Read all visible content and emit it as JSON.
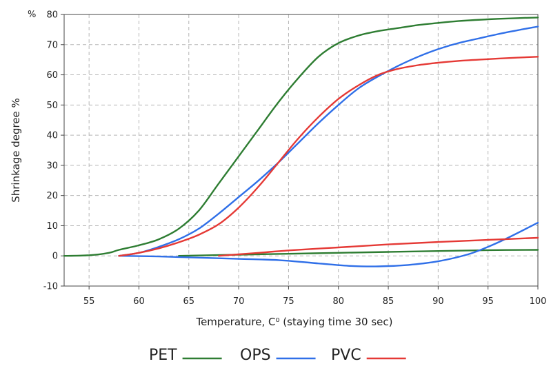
{
  "chart_data": {
    "type": "line",
    "xlabel": "Temperature, C⁰  (staying time 30 sec)",
    "ylabel": "Shrinkage degree %",
    "y_unit_label": "%",
    "xlim": [
      52.5,
      100
    ],
    "ylim": [
      -10,
      80
    ],
    "x_ticks": [
      55,
      60,
      65,
      70,
      75,
      80,
      85,
      90,
      95,
      100
    ],
    "y_ticks": [
      -10,
      0,
      10,
      20,
      30,
      40,
      50,
      60,
      70,
      80
    ],
    "grid": true,
    "legend_position": "bottom-center",
    "series": [
      {
        "name": "PET",
        "direction": "shrinkage",
        "color": "#2e7d32",
        "points": [
          [
            52.5,
            0
          ],
          [
            55,
            0.2
          ],
          [
            57,
            1
          ],
          [
            58,
            2
          ],
          [
            60,
            3.5
          ],
          [
            62,
            5.5
          ],
          [
            64,
            9
          ],
          [
            66,
            15
          ],
          [
            68,
            24
          ],
          [
            70,
            33
          ],
          [
            72,
            42
          ],
          [
            74,
            51
          ],
          [
            76,
            59
          ],
          [
            78,
            66
          ],
          [
            80,
            70.5
          ],
          [
            82,
            73
          ],
          [
            84,
            74.5
          ],
          [
            86,
            75.5
          ],
          [
            88,
            76.5
          ],
          [
            90,
            77.2
          ],
          [
            92,
            77.8
          ],
          [
            95,
            78.4
          ],
          [
            98,
            78.8
          ],
          [
            100,
            79
          ]
        ]
      },
      {
        "name": "PET",
        "direction": "transverse",
        "color": "#2e7d32",
        "points": [
          [
            64,
            0
          ],
          [
            70,
            0.4
          ],
          [
            75,
            0.7
          ],
          [
            80,
            1
          ],
          [
            85,
            1.3
          ],
          [
            90,
            1.6
          ],
          [
            95,
            1.9
          ],
          [
            100,
            2
          ]
        ]
      },
      {
        "name": "OPS",
        "direction": "shrinkage",
        "color": "#2f6fe8",
        "points": [
          [
            58,
            0
          ],
          [
            60,
            1
          ],
          [
            62,
            3
          ],
          [
            64,
            5.5
          ],
          [
            66,
            9
          ],
          [
            68,
            14
          ],
          [
            70,
            19.5
          ],
          [
            72,
            25
          ],
          [
            74,
            31
          ],
          [
            76,
            37.5
          ],
          [
            78,
            44
          ],
          [
            80,
            50
          ],
          [
            82,
            55.5
          ],
          [
            84,
            59.5
          ],
          [
            86,
            63
          ],
          [
            88,
            66
          ],
          [
            90,
            68.5
          ],
          [
            92,
            70.5
          ],
          [
            94,
            72
          ],
          [
            96,
            73.5
          ],
          [
            98,
            74.8
          ],
          [
            100,
            76
          ]
        ]
      },
      {
        "name": "OPS",
        "direction": "transverse",
        "color": "#2f6fe8",
        "points": [
          [
            58,
            0
          ],
          [
            62,
            -0.2
          ],
          [
            66,
            -0.6
          ],
          [
            70,
            -1
          ],
          [
            74,
            -1.4
          ],
          [
            78,
            -2.5
          ],
          [
            81,
            -3.3
          ],
          [
            84,
            -3.5
          ],
          [
            87,
            -3
          ],
          [
            90,
            -1.8
          ],
          [
            93,
            0.5
          ],
          [
            95,
            3
          ],
          [
            97,
            6
          ],
          [
            100,
            11
          ]
        ]
      },
      {
        "name": "PVC",
        "direction": "shrinkage",
        "color": "#e53935",
        "points": [
          [
            58,
            0
          ],
          [
            60,
            1
          ],
          [
            62,
            2.5
          ],
          [
            64,
            4.5
          ],
          [
            66,
            7
          ],
          [
            68,
            10.5
          ],
          [
            70,
            16
          ],
          [
            72,
            23
          ],
          [
            74,
            31
          ],
          [
            76,
            39
          ],
          [
            78,
            46
          ],
          [
            80,
            52
          ],
          [
            82,
            56.5
          ],
          [
            84,
            60
          ],
          [
            86,
            62
          ],
          [
            88,
            63.2
          ],
          [
            90,
            64
          ],
          [
            92,
            64.6
          ],
          [
            95,
            65.2
          ],
          [
            98,
            65.7
          ],
          [
            100,
            66
          ]
        ]
      },
      {
        "name": "PVC",
        "direction": "transverse",
        "color": "#e53935",
        "points": [
          [
            68,
            0
          ],
          [
            70,
            0.5
          ],
          [
            72,
            1
          ],
          [
            75,
            1.8
          ],
          [
            80,
            2.8
          ],
          [
            85,
            3.8
          ],
          [
            90,
            4.6
          ],
          [
            95,
            5.3
          ],
          [
            100,
            6
          ]
        ]
      }
    ],
    "legend": [
      {
        "label": "PET",
        "color": "#2e7d32"
      },
      {
        "label": "OPS",
        "color": "#2f6fe8"
      },
      {
        "label": "PVC",
        "color": "#e53935"
      }
    ]
  }
}
